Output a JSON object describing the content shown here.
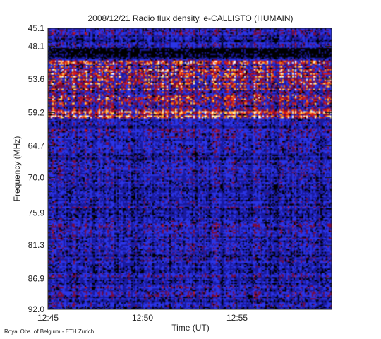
{
  "chart_data": {
    "type": "heatmap",
    "title": "2008/12/21  Radio flux density, e-CALLISTO (HUMAIN)",
    "xlabel": "Time (UT)",
    "ylabel": "Frequency (MHz)",
    "x_range_minutes": [
      0,
      15
    ],
    "x_tick_labels": [
      "12:45",
      "12:50",
      "12:55"
    ],
    "x_tick_minutes": [
      0,
      5,
      10
    ],
    "ylim": [
      45.1,
      92.0
    ],
    "y_reversed": true,
    "y_tick_labels": [
      "45.1",
      "48.1",
      "53.6",
      "59.2",
      "64.7",
      "70.0",
      "75.9",
      "81.3",
      "86.9",
      "92.0"
    ],
    "y_tick_values": [
      45.1,
      48.1,
      53.6,
      59.2,
      64.7,
      70.0,
      75.9,
      81.3,
      86.9,
      92.0
    ],
    "colormap": [
      "#000000",
      "#1a1a9e",
      "#2b35e6",
      "#7a0a3a",
      "#d21a1a",
      "#ff7a10",
      "#ffe066",
      "#ffffff"
    ],
    "features": [
      {
        "name": "dark band",
        "freq_range": [
          48.5,
          50.0
        ],
        "intensity": 0.1
      },
      {
        "name": "emission band",
        "freq_range": [
          50.5,
          60.0
        ],
        "intensity": 0.75
      },
      {
        "name": "bright line",
        "freq_range": [
          58.6,
          59.8
        ],
        "intensity": 0.95
      }
    ]
  },
  "footer": {
    "credit": "Royal Obs. of Belgium - ETH Zurich"
  }
}
